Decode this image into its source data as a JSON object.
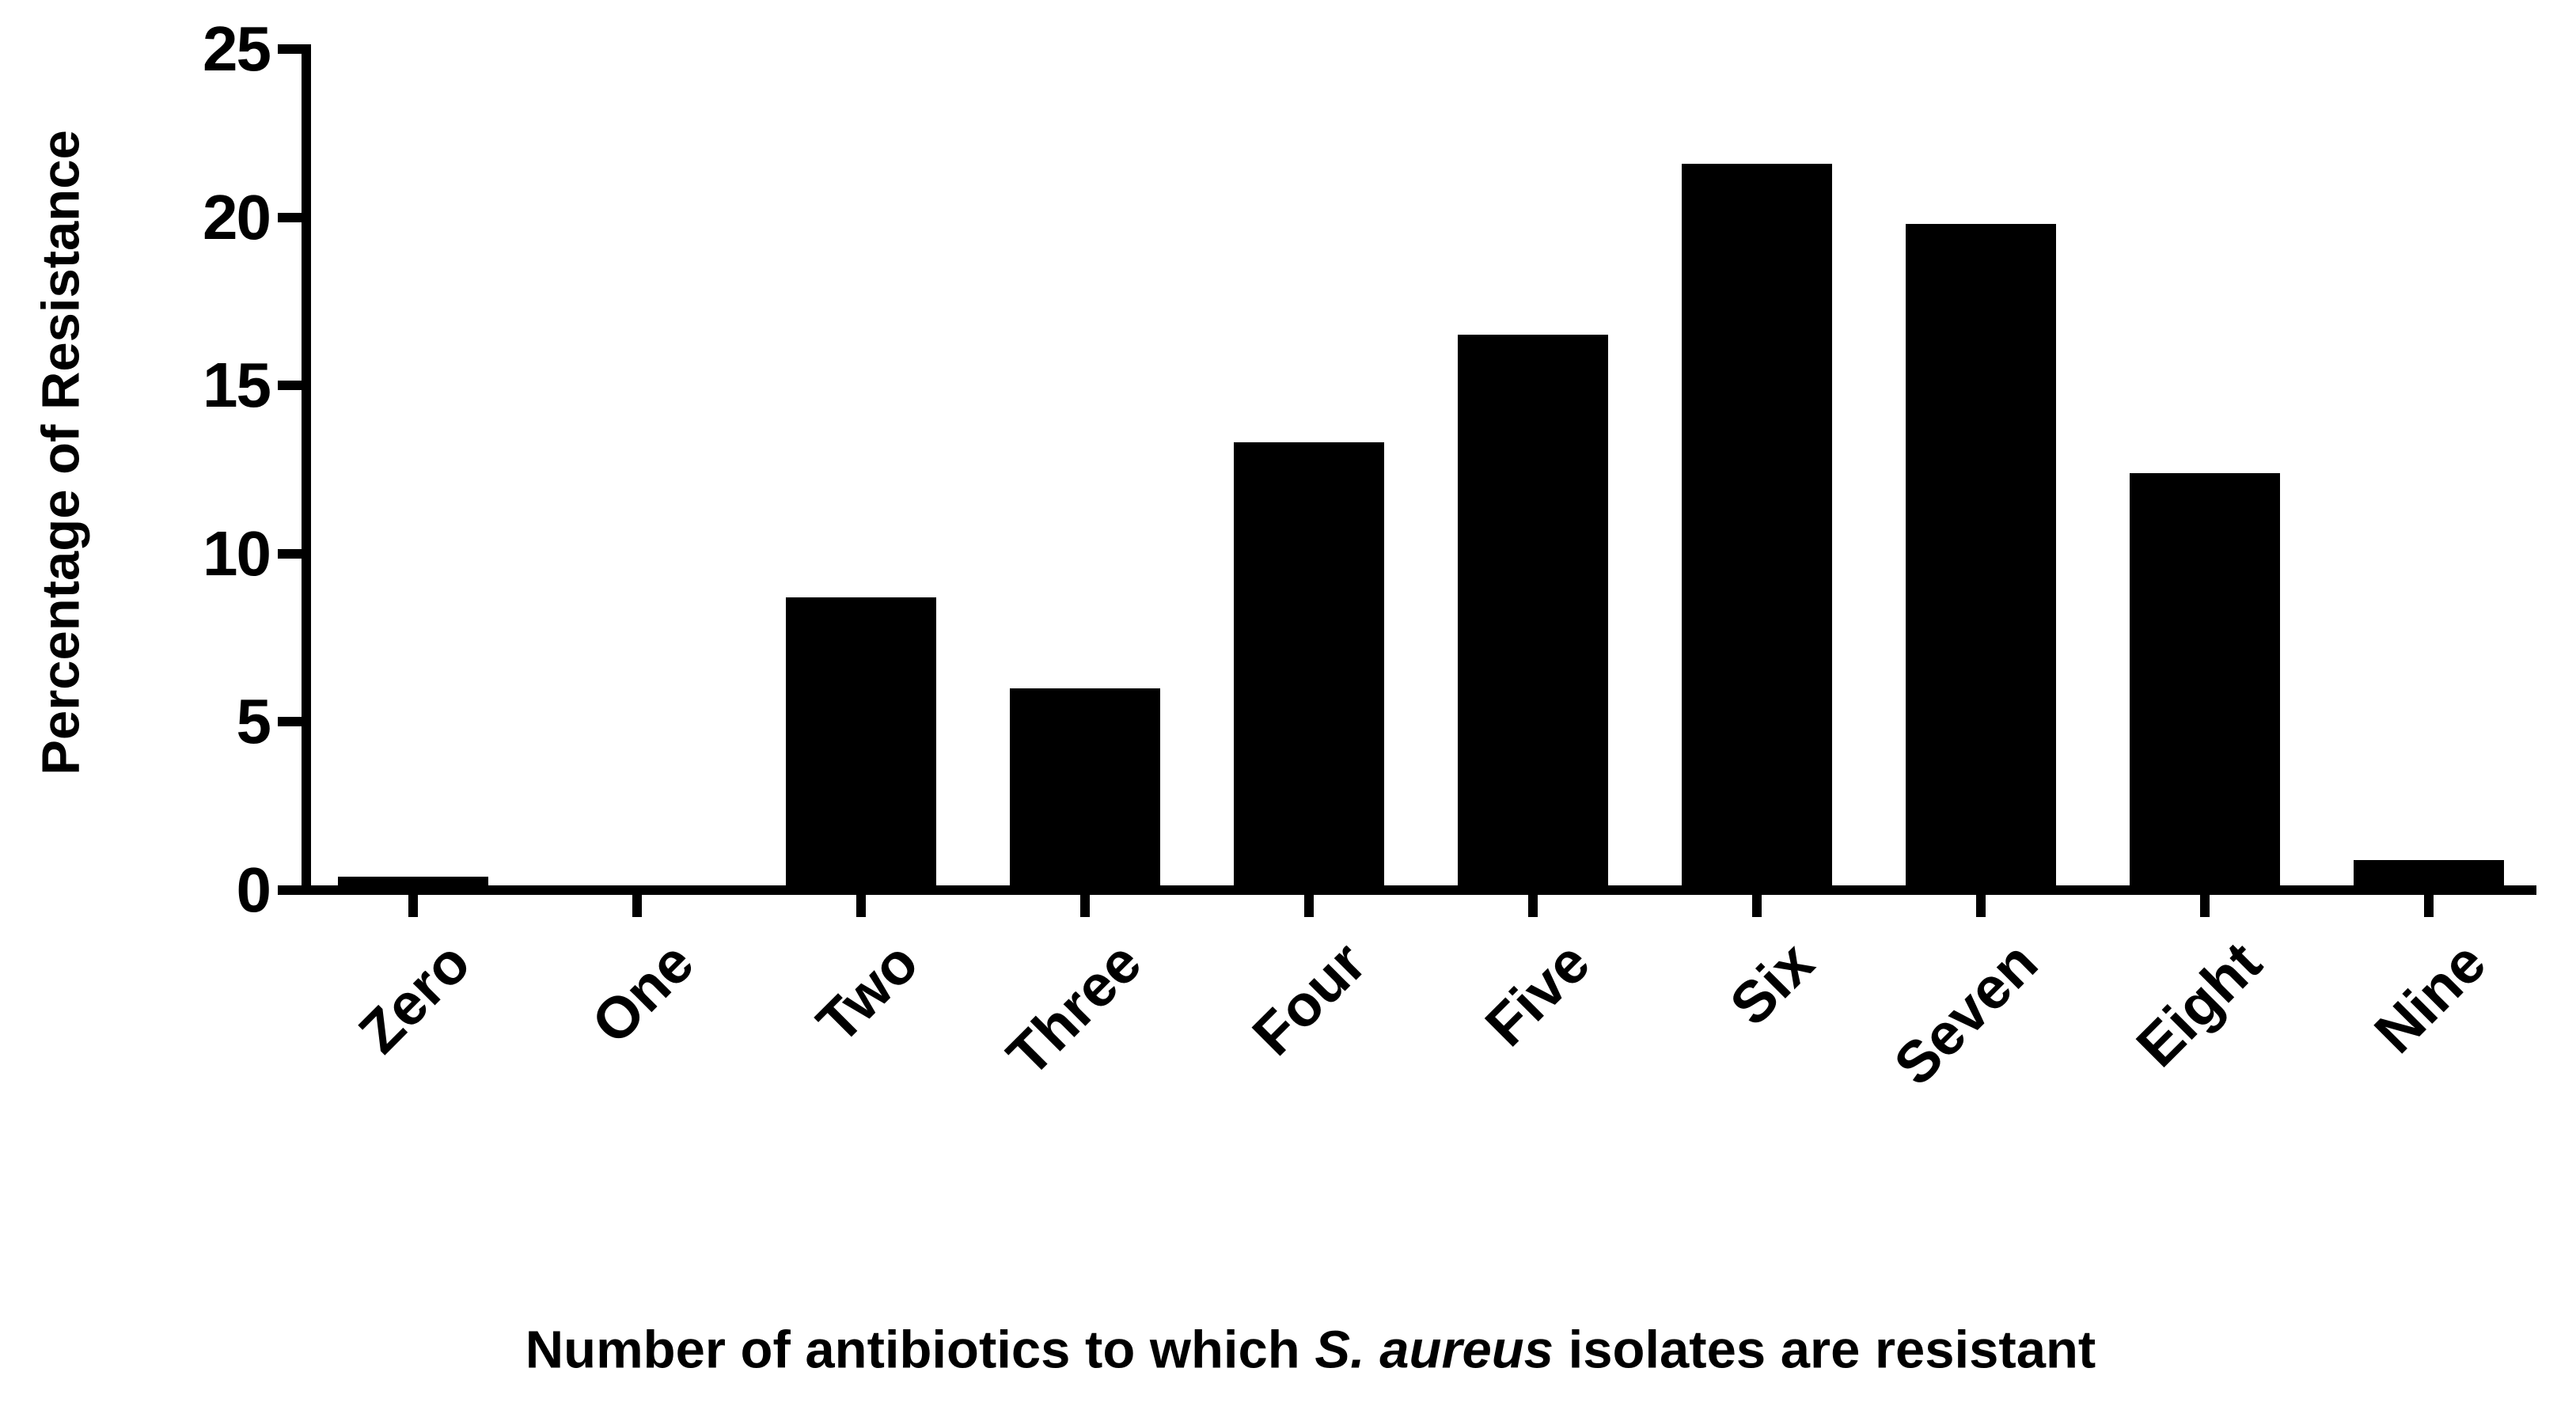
{
  "chart_data": {
    "type": "bar",
    "title": "",
    "categories": [
      "Zero",
      "One",
      "Two",
      "Three",
      "Four",
      "Five",
      "Six",
      "Seven",
      "Eight",
      "Nine"
    ],
    "values": [
      0.4,
      0,
      8.7,
      6.0,
      13.3,
      16.5,
      21.6,
      19.8,
      12.4,
      0.9
    ],
    "ylabel": "Percentage of Resistance",
    "xlabel": "Number of antibiotics to which S. aureus isolates are resistant",
    "xlabel_parts": [
      {
        "text": "Number of antibiotics to which ",
        "italic": false
      },
      {
        "text": "S. aureus",
        "italic": true
      },
      {
        "text": " isolates are resistant",
        "italic": false
      }
    ],
    "yticks": [
      0,
      5,
      10,
      15,
      20,
      25
    ],
    "ytick_labels": [
      "0",
      "5",
      "10",
      "15",
      "20",
      "25"
    ],
    "ylim": [
      0,
      25
    ],
    "grid": false,
    "legend": "none",
    "bar_color": "#000000",
    "axis_color": "#000000",
    "background_color": "#ffffff",
    "text_color": "#000000"
  }
}
